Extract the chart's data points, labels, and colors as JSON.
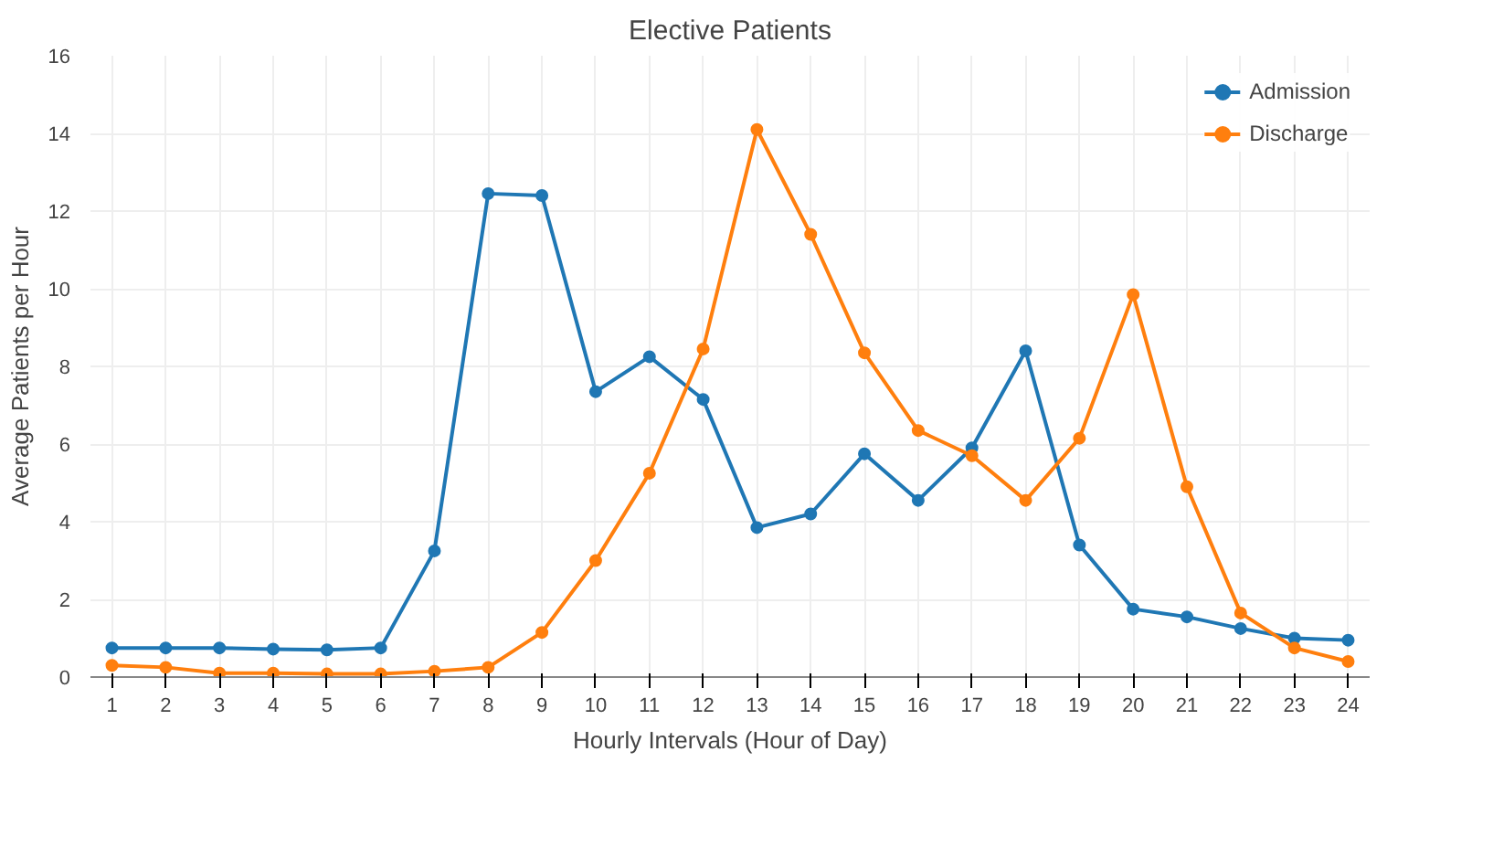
{
  "chart_data": {
    "type": "line",
    "title": "Elective Patients",
    "xlabel": "Hourly Intervals (Hour of Day)",
    "ylabel": "Average Patients per Hour",
    "x": [
      1,
      2,
      3,
      4,
      5,
      6,
      7,
      8,
      9,
      10,
      11,
      12,
      13,
      14,
      15,
      16,
      17,
      18,
      19,
      20,
      21,
      22,
      23,
      24
    ],
    "series": [
      {
        "name": "Admission",
        "color": "#1f77b4",
        "values": [
          0.75,
          0.75,
          0.75,
          0.72,
          0.7,
          0.75,
          3.25,
          12.45,
          12.4,
          7.35,
          8.25,
          7.15,
          3.85,
          4.2,
          5.75,
          4.55,
          5.9,
          8.4,
          3.4,
          1.75,
          1.55,
          1.25,
          1.0,
          0.95
        ]
      },
      {
        "name": "Discharge",
        "color": "#ff7f0e",
        "values": [
          0.3,
          0.25,
          0.1,
          0.1,
          0.08,
          0.08,
          0.15,
          0.25,
          1.15,
          3.0,
          5.25,
          8.45,
          14.1,
          11.4,
          8.35,
          6.35,
          5.7,
          4.55,
          6.15,
          9.85,
          4.9,
          1.65,
          0.75,
          0.4
        ]
      }
    ],
    "xlim": [
      0.6,
      24.4
    ],
    "xticks": [
      1,
      2,
      3,
      4,
      5,
      6,
      7,
      8,
      9,
      10,
      11,
      12,
      13,
      14,
      15,
      16,
      17,
      18,
      19,
      20,
      21,
      22,
      23,
      24
    ],
    "ylim": [
      0,
      16
    ],
    "yticks": [
      0,
      2,
      4,
      6,
      8,
      10,
      12,
      14,
      16
    ],
    "grid": true,
    "legend": "top right",
    "marker": "circle",
    "line_style": "solid"
  }
}
